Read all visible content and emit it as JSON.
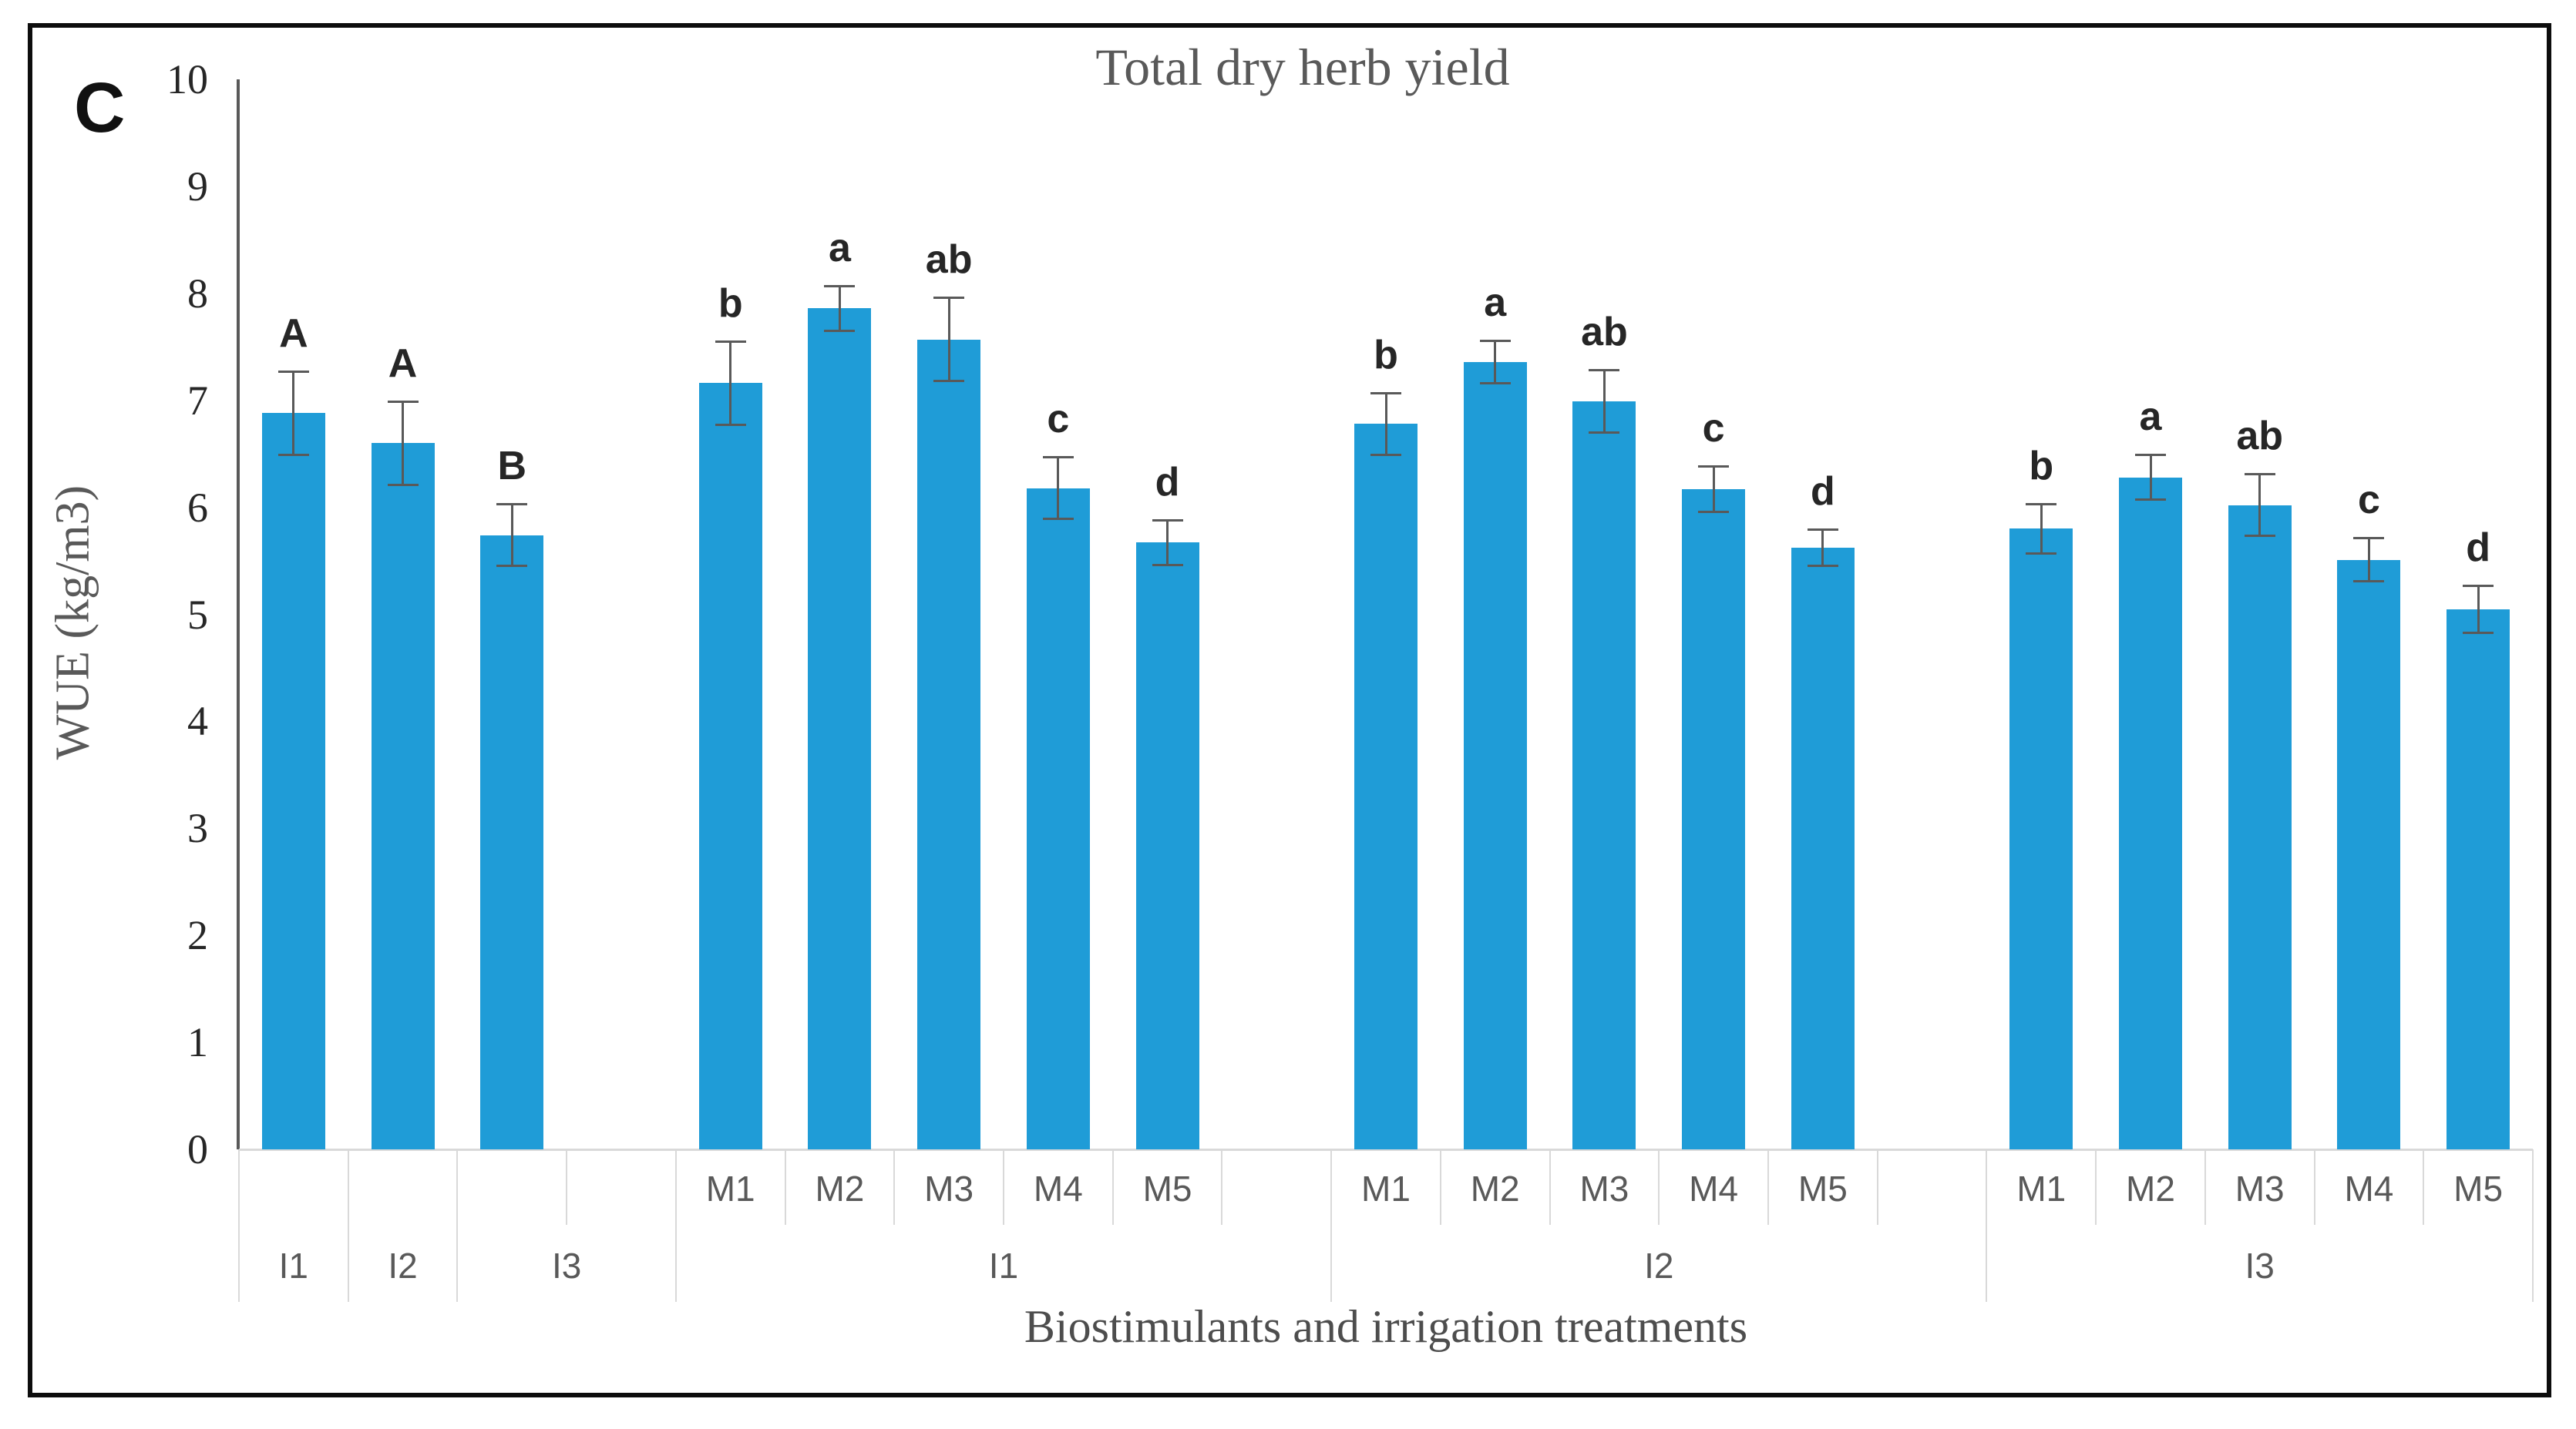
{
  "figure": {
    "panel_label": "C",
    "title": "Total dry herb yield",
    "y_axis_title": "WUE (kg/m3)",
    "x_axis_title": "Biostimulants and irrigation treatments"
  },
  "chart_data": {
    "type": "bar",
    "title": "Total dry herb yield",
    "xlabel": "Biostimulants and irrigation treatments",
    "ylabel": "WUE (kg/m3)",
    "ylim": [
      0,
      10
    ],
    "yticks": [
      0,
      1,
      2,
      3,
      4,
      5,
      6,
      7,
      8,
      9,
      10
    ],
    "grid": false,
    "legend": false,
    "bar_color": "#1F9CD7",
    "error_bar_color": "#595959",
    "divider_color": "#d9d9d9",
    "groups": [
      {
        "group_label": "",
        "bar_label_row": "bottom",
        "spacer_after": true,
        "bars": [
          {
            "label": "I1",
            "value": 6.88,
            "error": 0.4,
            "letter": "A"
          },
          {
            "label": "I2",
            "value": 6.6,
            "error": 0.4,
            "letter": "A"
          },
          {
            "label": "I3",
            "value": 5.74,
            "error": 0.3,
            "letter": "B"
          }
        ]
      },
      {
        "group_label": "I1",
        "bar_label_row": "top",
        "spacer_after": true,
        "bars": [
          {
            "label": "M1",
            "value": 7.16,
            "error": 0.4,
            "letter": "b"
          },
          {
            "label": "M2",
            "value": 7.86,
            "error": 0.22,
            "letter": "a"
          },
          {
            "label": "M3",
            "value": 7.57,
            "error": 0.4,
            "letter": "ab"
          },
          {
            "label": "M4",
            "value": 6.18,
            "error": 0.3,
            "letter": "c"
          },
          {
            "label": "M5",
            "value": 5.67,
            "error": 0.22,
            "letter": "d"
          }
        ]
      },
      {
        "group_label": "I2",
        "bar_label_row": "top",
        "spacer_after": true,
        "bars": [
          {
            "label": "M1",
            "value": 6.78,
            "error": 0.3,
            "letter": "b"
          },
          {
            "label": "M2",
            "value": 7.36,
            "error": 0.21,
            "letter": "a"
          },
          {
            "label": "M3",
            "value": 6.99,
            "error": 0.3,
            "letter": "ab"
          },
          {
            "label": "M4",
            "value": 6.17,
            "error": 0.22,
            "letter": "c"
          },
          {
            "label": "M5",
            "value": 5.62,
            "error": 0.18,
            "letter": "d"
          }
        ]
      },
      {
        "group_label": "I3",
        "bar_label_row": "top",
        "spacer_after": false,
        "bars": [
          {
            "label": "M1",
            "value": 5.8,
            "error": 0.24,
            "letter": "b"
          },
          {
            "label": "M2",
            "value": 6.28,
            "error": 0.22,
            "letter": "a"
          },
          {
            "label": "M3",
            "value": 6.02,
            "error": 0.3,
            "letter": "ab"
          },
          {
            "label": "M4",
            "value": 5.51,
            "error": 0.21,
            "letter": "c"
          },
          {
            "label": "M5",
            "value": 5.05,
            "error": 0.23,
            "letter": "d"
          }
        ]
      }
    ]
  }
}
